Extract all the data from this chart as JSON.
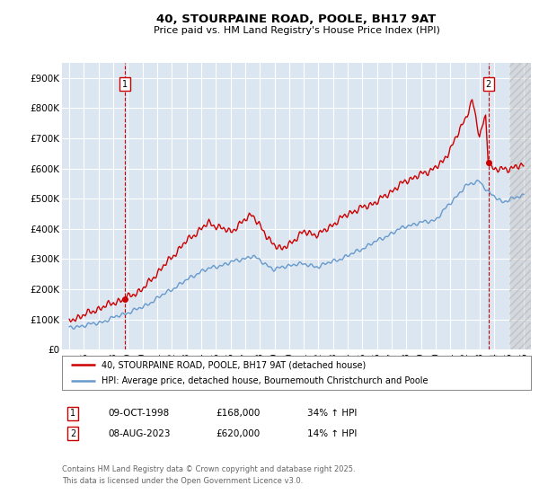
{
  "title": "40, STOURPAINE ROAD, POOLE, BH17 9AT",
  "subtitle": "Price paid vs. HM Land Registry's House Price Index (HPI)",
  "background_color": "#ffffff",
  "plot_bg_color": "#dce6f1",
  "grid_color": "#ffffff",
  "red_line_color": "#cc0000",
  "blue_line_color": "#6699cc",
  "annotation1_date": "09-OCT-1998",
  "annotation1_price": "£168,000",
  "annotation1_hpi": "34% ↑ HPI",
  "annotation2_date": "08-AUG-2023",
  "annotation2_price": "£620,000",
  "annotation2_hpi": "14% ↑ HPI",
  "legend1": "40, STOURPAINE ROAD, POOLE, BH17 9AT (detached house)",
  "legend2": "HPI: Average price, detached house, Bournemouth Christchurch and Poole",
  "footer": "Contains HM Land Registry data © Crown copyright and database right 2025.\nThis data is licensed under the Open Government Licence v3.0.",
  "ylim": [
    0,
    950000
  ],
  "yticks": [
    0,
    100000,
    200000,
    300000,
    400000,
    500000,
    600000,
    700000,
    800000,
    900000
  ],
  "ytick_labels": [
    "£0",
    "£100K",
    "£200K",
    "£300K",
    "£400K",
    "£500K",
    "£600K",
    "£700K",
    "£800K",
    "£900K"
  ],
  "marker1_x": 1998.78,
  "marker1_y": 168000,
  "marker2_x": 2023.6,
  "marker2_y": 620000,
  "xlim_left": 1994.5,
  "xlim_right": 2026.5,
  "hatch_start": 2025.0
}
